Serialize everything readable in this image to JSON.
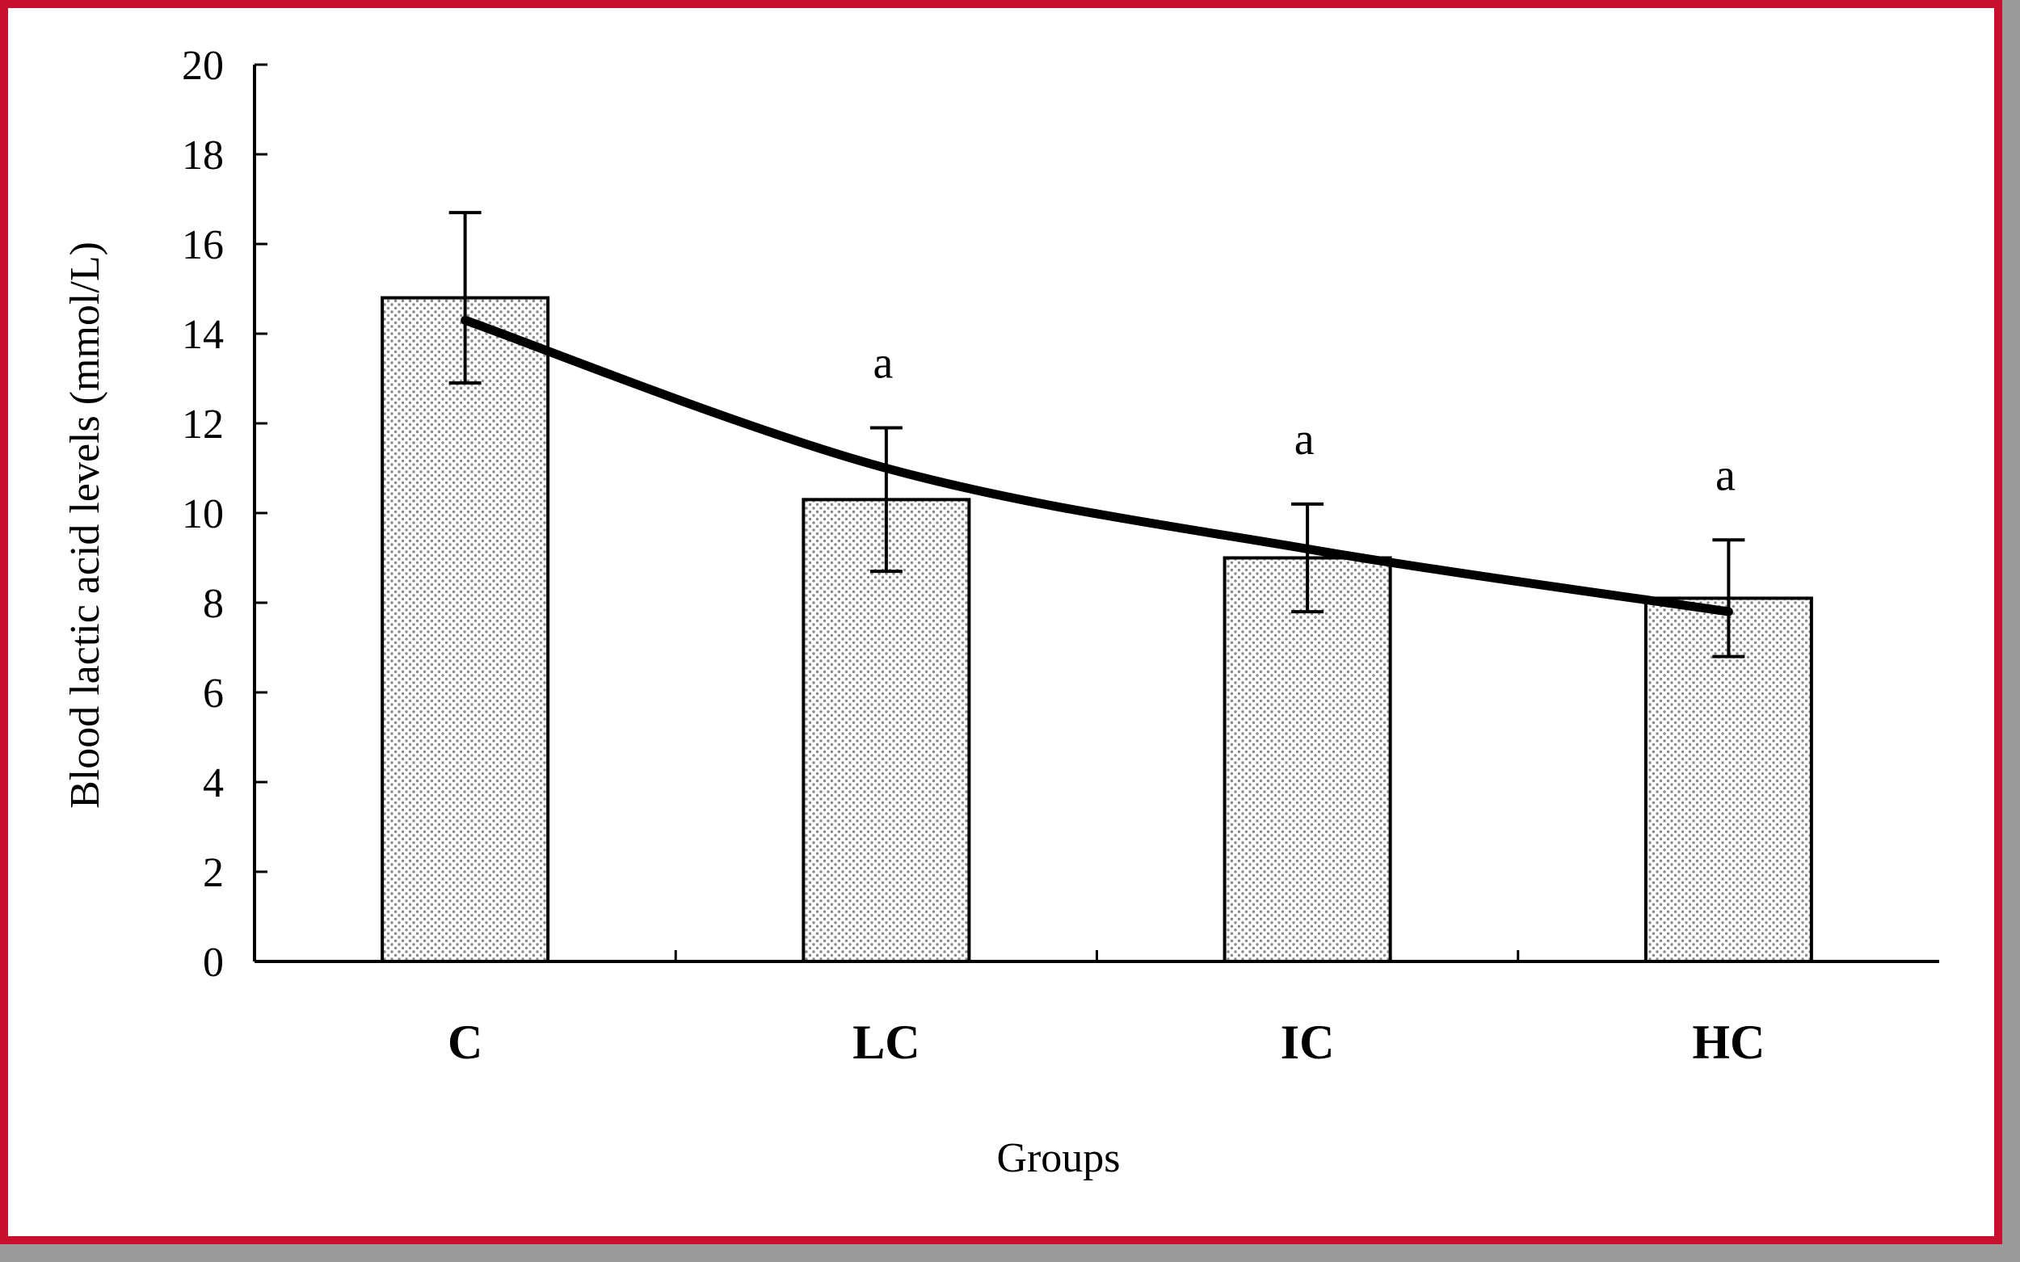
{
  "chart_data": {
    "type": "bar",
    "title": "",
    "xlabel": "Groups",
    "ylabel": "Blood lactic acid levels (mmol/L)",
    "categories": [
      "C",
      "LC",
      "IC",
      "HC"
    ],
    "values": [
      14.8,
      10.3,
      9.0,
      8.1
    ],
    "error": [
      1.9,
      1.6,
      1.2,
      1.3
    ],
    "significance": [
      "",
      "a",
      "a",
      "a"
    ],
    "trendline": [
      14.3,
      11.0,
      9.2,
      7.8
    ],
    "ylim": [
      0,
      20
    ],
    "yticks": [
      0,
      2,
      4,
      6,
      8,
      10,
      12,
      14,
      16,
      18,
      20
    ],
    "grid": false,
    "legend": "none",
    "colors": {
      "frame": "#c8102e",
      "bar_dots": "#8a8a8a",
      "ink": "#000000"
    }
  }
}
